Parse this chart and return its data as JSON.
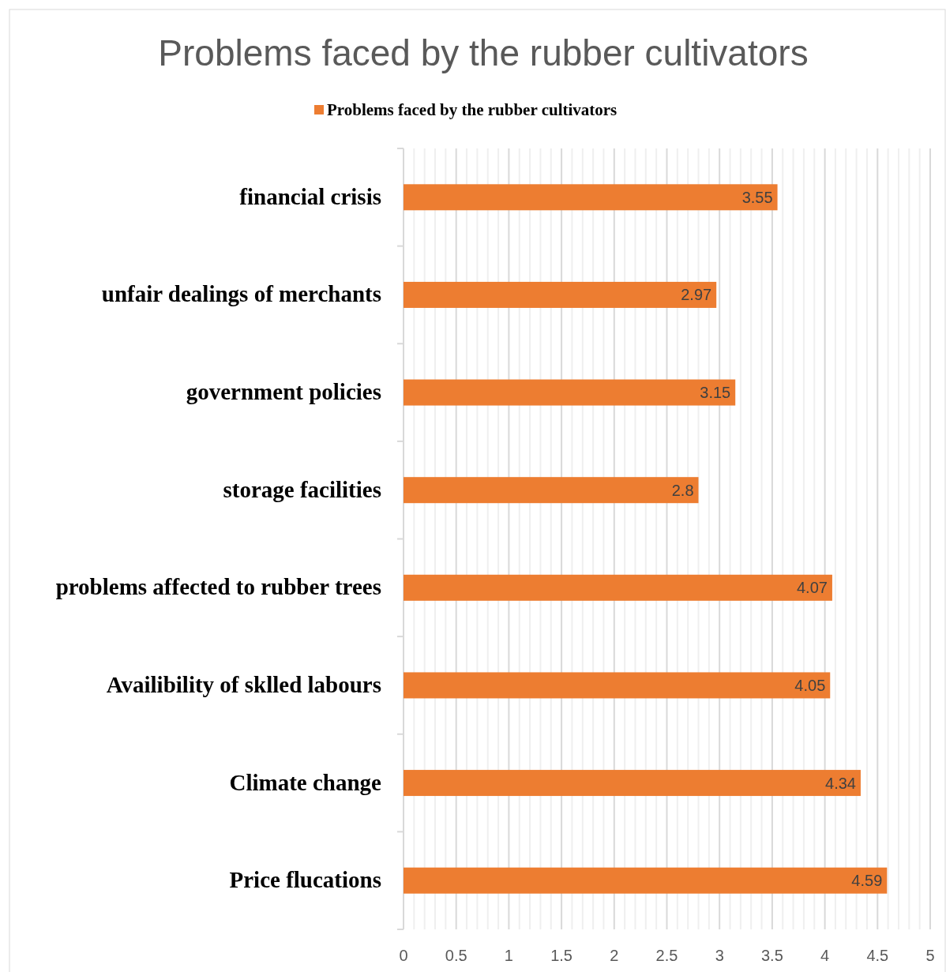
{
  "chart_data": {
    "type": "bar",
    "orientation": "horizontal",
    "title": "Problems faced by the rubber cultivators",
    "categories": [
      "financial crisis",
      "unfair dealings of merchants",
      "government policies",
      "storage facilities",
      "problems affected to rubber trees",
      "Availibility of sklled labours",
      "Climate change",
      "Price flucations"
    ],
    "series": [
      {
        "name": "Problems faced by the rubber cultivators",
        "color": "#ed7d31",
        "values": [
          3.55,
          2.97,
          3.15,
          2.8,
          4.07,
          4.05,
          4.34,
          4.59
        ]
      }
    ],
    "xlim": [
      0,
      5
    ],
    "xticks": [
      0,
      0.5,
      1,
      1.5,
      2,
      2.5,
      3,
      3.5,
      4,
      4.5,
      5
    ],
    "grid": "x",
    "legend": "top",
    "data_labels": true
  }
}
